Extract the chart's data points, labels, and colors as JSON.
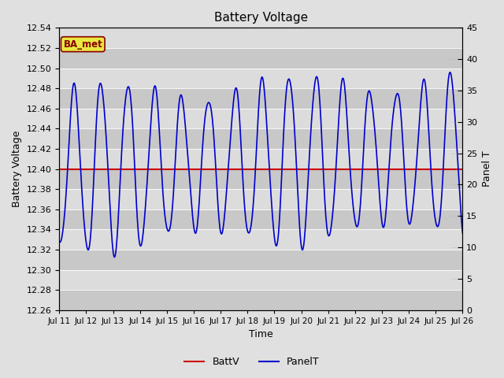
{
  "title": "Battery Voltage",
  "xlabel": "Time",
  "ylabel_left": "Battery Voltage",
  "ylabel_right": "Panel T",
  "ylim_left": [
    12.26,
    12.54
  ],
  "ylim_right": [
    0,
    45
  ],
  "yticks_left": [
    12.26,
    12.28,
    12.3,
    12.32,
    12.34,
    12.36,
    12.38,
    12.4,
    12.42,
    12.44,
    12.46,
    12.48,
    12.5,
    12.52,
    12.54
  ],
  "yticks_right": [
    0,
    5,
    10,
    15,
    20,
    25,
    30,
    35,
    40,
    45
  ],
  "xlim": [
    0,
    15
  ],
  "xtick_positions": [
    0,
    1,
    2,
    3,
    4,
    5,
    6,
    7,
    8,
    9,
    10,
    11,
    12,
    13,
    14,
    15
  ],
  "xtick_labels": [
    "Jul 11",
    "Jul 12",
    "Jul 13",
    "Jul 14",
    "Jul 15",
    "Jul 16",
    "Jul 17",
    "Jul 18",
    "Jul 19",
    "Jul 20",
    "Jul 21",
    "Jul 22",
    "Jul 23",
    "Jul 24",
    "Jul 25",
    "Jul 26"
  ],
  "battv_value": 12.4,
  "battv_color": "#cc0000",
  "panelt_color": "#0000cc",
  "background_color": "#e0e0e0",
  "plot_bg_color": "#d4d4d4",
  "stripe_color_dark": "#c8c8c8",
  "stripe_color_light": "#dcdcdc",
  "annotation_text": "BA_met",
  "annotation_bg": "#e8e840",
  "annotation_border": "#880000",
  "legend_labels": [
    "BattV",
    "PanelT"
  ],
  "grid_color": "#ffffff",
  "title_fontsize": 11,
  "axis_fontsize": 9,
  "tick_fontsize": 8
}
